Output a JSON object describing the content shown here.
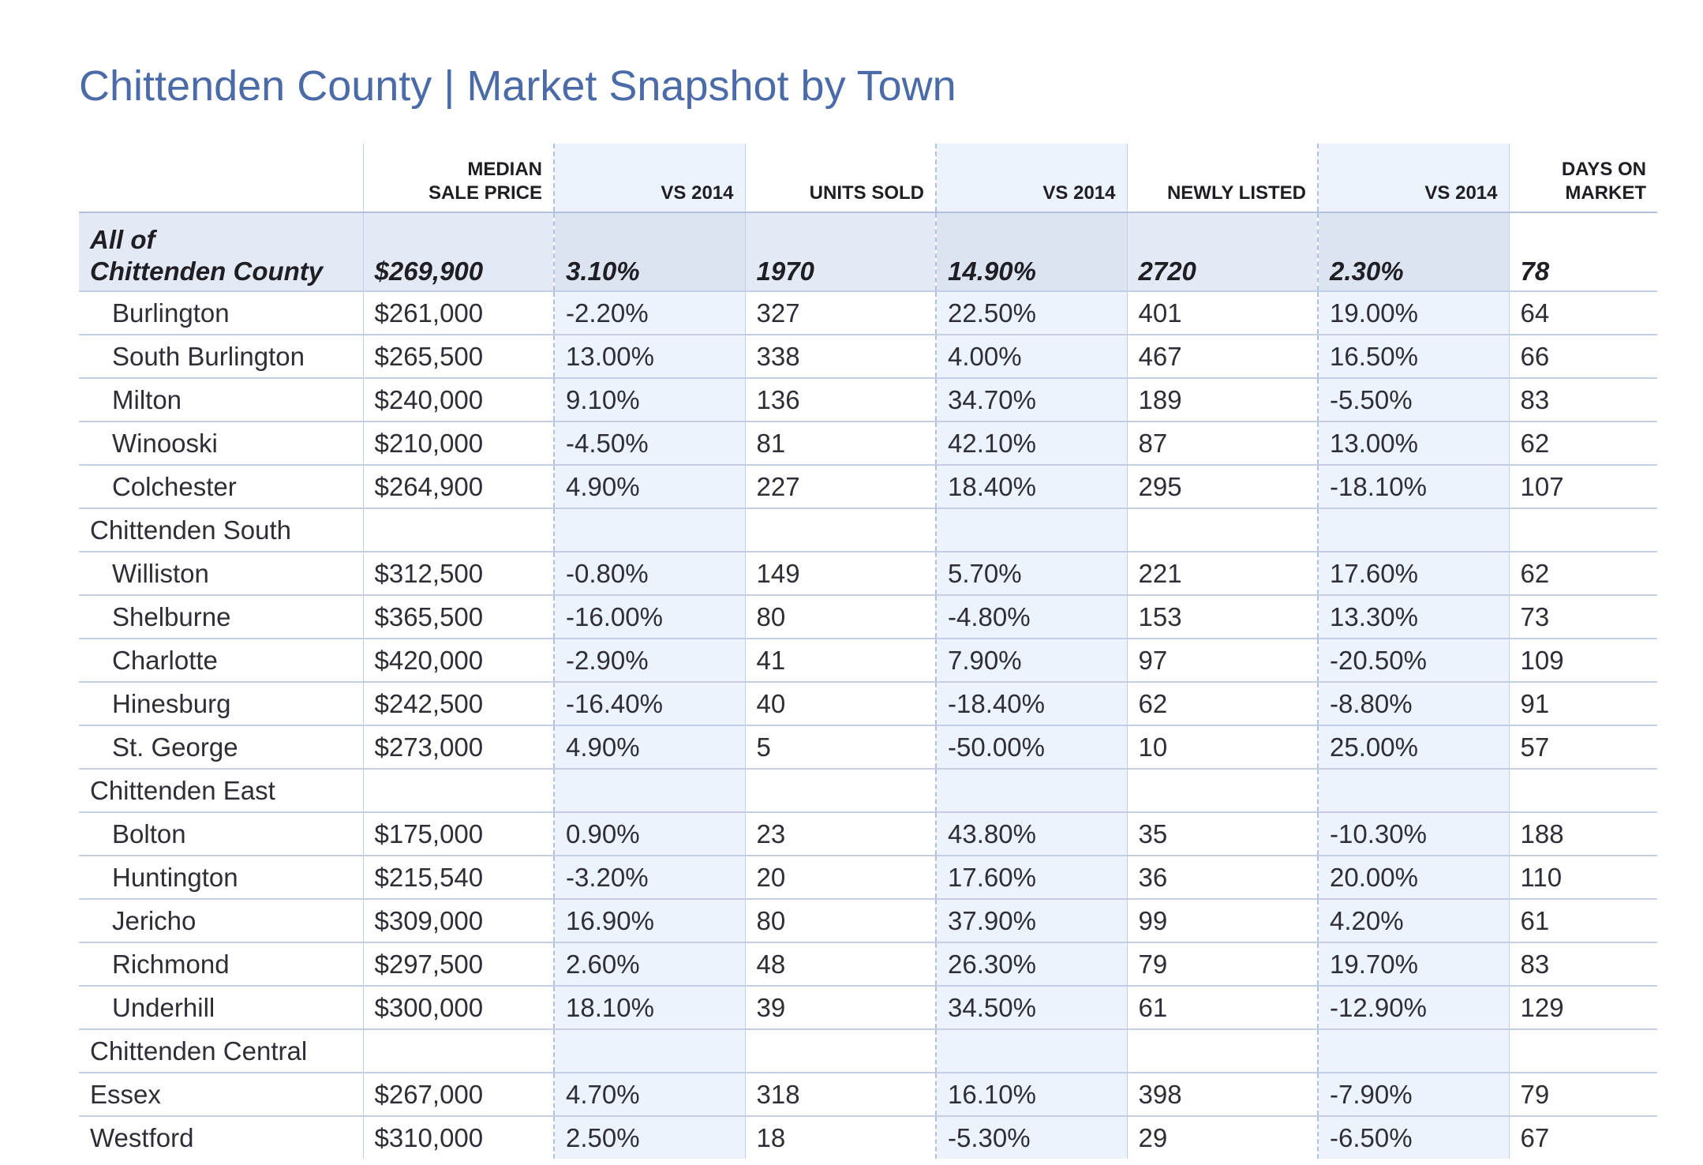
{
  "title": "Chittenden County | Market Snapshot by Town",
  "columns": [
    {
      "label": "",
      "shaded": false
    },
    {
      "label": "MEDIAN\nSALE PRICE",
      "shaded": false
    },
    {
      "label": "VS 2014",
      "shaded": true
    },
    {
      "label": "UNITS SOLD",
      "shaded": false
    },
    {
      "label": "VS 2014",
      "shaded": true
    },
    {
      "label": "NEWLY LISTED",
      "shaded": false
    },
    {
      "label": "VS 2014",
      "shaded": true
    },
    {
      "label": "DAYS ON\nMARKET",
      "shaded": false
    }
  ],
  "total_row": {
    "town": "All of\nChittenden County",
    "values": [
      "$269,900",
      "3.10%",
      "1970",
      "14.90%",
      "2720",
      "2.30%",
      "78"
    ]
  },
  "rows": [
    {
      "type": "town",
      "town": "Burlington",
      "values": [
        "$261,000",
        "-2.20%",
        "327",
        "22.50%",
        "401",
        "19.00%",
        "64"
      ]
    },
    {
      "type": "town",
      "town": "South Burlington",
      "values": [
        "$265,500",
        "13.00%",
        "338",
        "4.00%",
        "467",
        "16.50%",
        "66"
      ]
    },
    {
      "type": "town",
      "town": "Milton",
      "values": [
        "$240,000",
        "9.10%",
        "136",
        "34.70%",
        "189",
        "-5.50%",
        "83"
      ]
    },
    {
      "type": "town",
      "town": "Winooski",
      "values": [
        "$210,000",
        "-4.50%",
        "81",
        "42.10%",
        "87",
        "13.00%",
        "62"
      ]
    },
    {
      "type": "town",
      "town": "Colchester",
      "values": [
        "$264,900",
        "4.90%",
        "227",
        "18.40%",
        "295",
        "-18.10%",
        "107"
      ]
    },
    {
      "type": "region",
      "town": "Chittenden South",
      "values": [
        "",
        "",
        "",
        "",
        "",
        "",
        ""
      ]
    },
    {
      "type": "town",
      "town": "Williston",
      "values": [
        "$312,500",
        "-0.80%",
        "149",
        "5.70%",
        "221",
        "17.60%",
        "62"
      ]
    },
    {
      "type": "town",
      "town": "Shelburne",
      "values": [
        "$365,500",
        "-16.00%",
        "80",
        "-4.80%",
        "153",
        "13.30%",
        "73"
      ]
    },
    {
      "type": "town",
      "town": "Charlotte",
      "values": [
        "$420,000",
        "-2.90%",
        "41",
        "7.90%",
        "97",
        "-20.50%",
        "109"
      ]
    },
    {
      "type": "town",
      "town": "Hinesburg",
      "values": [
        "$242,500",
        "-16.40%",
        "40",
        "-18.40%",
        "62",
        "-8.80%",
        "91"
      ]
    },
    {
      "type": "town",
      "town": "St. George",
      "values": [
        "$273,000",
        "4.90%",
        "5",
        "-50.00%",
        "10",
        "25.00%",
        "57"
      ]
    },
    {
      "type": "region",
      "town": "Chittenden East",
      "values": [
        "",
        "",
        "",
        "",
        "",
        "",
        ""
      ]
    },
    {
      "type": "town",
      "town": "Bolton",
      "values": [
        "$175,000",
        "0.90%",
        "23",
        "43.80%",
        "35",
        "-10.30%",
        "188"
      ]
    },
    {
      "type": "town",
      "town": "Huntington",
      "values": [
        "$215,540",
        "-3.20%",
        "20",
        "17.60%",
        "36",
        "20.00%",
        "110"
      ]
    },
    {
      "type": "town",
      "town": "Jericho",
      "values": [
        "$309,000",
        "16.90%",
        "80",
        "37.90%",
        "99",
        "4.20%",
        "61"
      ]
    },
    {
      "type": "town",
      "town": "Richmond",
      "values": [
        "$297,500",
        "2.60%",
        "48",
        "26.30%",
        "79",
        "19.70%",
        "83"
      ]
    },
    {
      "type": "town",
      "town": "Underhill",
      "values": [
        "$300,000",
        "18.10%",
        "39",
        "34.50%",
        "61",
        "-12.90%",
        "129"
      ]
    },
    {
      "type": "region",
      "town": "Chittenden Central",
      "values": [
        "",
        "",
        "",
        "",
        "",
        "",
        ""
      ]
    },
    {
      "type": "flat",
      "town": "Essex",
      "values": [
        "$267,000",
        "4.70%",
        "318",
        "16.10%",
        "398",
        "-7.90%",
        "79"
      ]
    },
    {
      "type": "flat",
      "town": "Westford",
      "values": [
        "$310,000",
        "2.50%",
        "18",
        "-5.30%",
        "29",
        "-6.50%",
        "67"
      ]
    }
  ],
  "colors": {
    "title": "#4a6aa8",
    "shaded_column": "#edf3fc",
    "total_row": "#e4eaf5",
    "grid": "#c3cde3"
  }
}
